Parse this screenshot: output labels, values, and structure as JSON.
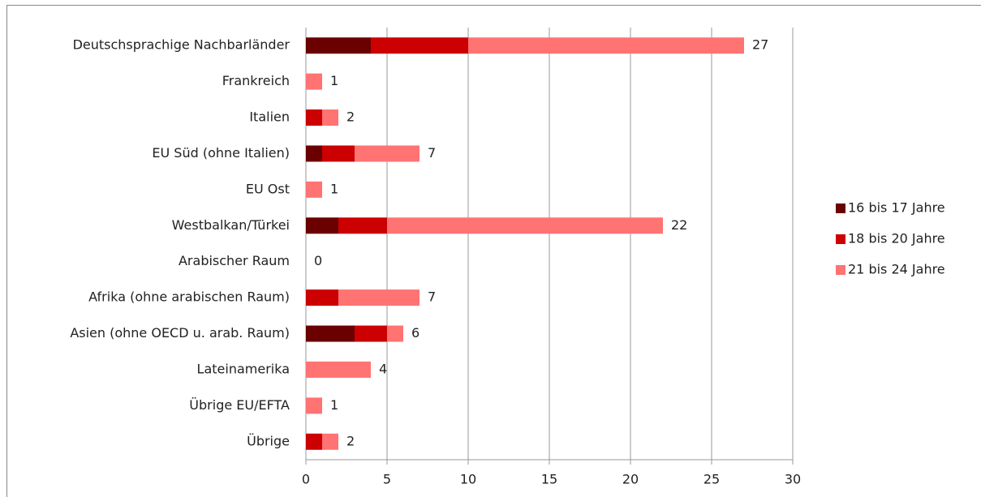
{
  "chart_data": {
    "type": "stacked-bar-horizontal",
    "categories": [
      "Deutschsprachige Nachbarländer",
      "Frankreich",
      "Italien",
      "EU Süd (ohne Italien)",
      "EU Ost",
      "Westbalkan/Türkei",
      "Arabischer Raum",
      "Afrika (ohne arabischen Raum)",
      "Asien (ohne OECD u. arab. Raum)",
      "Lateinamerika",
      "Übrige EU/EFTA",
      "Übrige"
    ],
    "series": [
      {
        "name": "16 bis 17 Jahre",
        "color": "#6b0000",
        "values": [
          4,
          0,
          0,
          1,
          0,
          2,
          0,
          0,
          3,
          0,
          0,
          0
        ]
      },
      {
        "name": "18 bis 20 Jahre",
        "color": "#cc0000",
        "values": [
          6,
          0,
          1,
          2,
          0,
          3,
          0,
          2,
          2,
          0,
          0,
          1
        ]
      },
      {
        "name": "21 bis 24 Jahre",
        "color": "#ff7373",
        "values": [
          17,
          1,
          1,
          4,
          1,
          17,
          0,
          5,
          1,
          4,
          1,
          1
        ]
      }
    ],
    "totals": [
      27,
      1,
      2,
      7,
      1,
      22,
      0,
      7,
      6,
      4,
      1,
      2
    ],
    "xlim": [
      0,
      30
    ],
    "xticks": [
      0,
      5,
      10,
      15,
      20,
      25,
      30
    ],
    "grid": true,
    "legend": "right"
  }
}
